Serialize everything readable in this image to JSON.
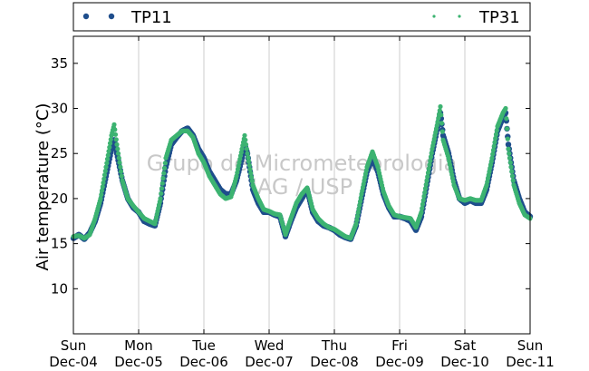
{
  "chart_data": {
    "type": "scatter",
    "ylabel": "Air temperature (°C)",
    "ylim": [
      5,
      38
    ],
    "yticks": [
      10,
      15,
      20,
      25,
      30,
      35
    ],
    "xlim": [
      "2016-12-04 00:00",
      "2016-12-11 00:00"
    ],
    "xticks": [
      {
        "date": "2016-12-04",
        "line1": "Sun",
        "line2": "Dec-04"
      },
      {
        "date": "2016-12-05",
        "line1": "Mon",
        "line2": "Dec-05"
      },
      {
        "date": "2016-12-06",
        "line1": "Tue",
        "line2": "Dec-06"
      },
      {
        "date": "2016-12-07",
        "line1": "Wed",
        "line2": "Dec-07"
      },
      {
        "date": "2016-12-08",
        "line1": "Thu",
        "line2": "Dec-08"
      },
      {
        "date": "2016-12-09",
        "line1": "Fri",
        "line2": "Dec-09"
      },
      {
        "date": "2016-12-10",
        "line1": "Sat",
        "line2": "Dec-10"
      },
      {
        "date": "2016-12-11",
        "line1": "Sun",
        "line2": "Dec-11"
      }
    ],
    "grid": "vertical",
    "legend_position": "top",
    "watermark": [
      "Grupo de Micrometeorologia",
      "IAG / USP"
    ],
    "series": [
      {
        "name": "TP11",
        "color": "#1f4e8c",
        "x": [
          "2016-12-04 00:00",
          "2016-12-04 02:00",
          "2016-12-04 04:00",
          "2016-12-04 06:00",
          "2016-12-04 08:00",
          "2016-12-04 10:00",
          "2016-12-04 12:00",
          "2016-12-04 14:00",
          "2016-12-04 15:00",
          "2016-12-04 16:00",
          "2016-12-04 17:00",
          "2016-12-04 18:00",
          "2016-12-04 20:00",
          "2016-12-04 22:00",
          "2016-12-05 00:00",
          "2016-12-05 02:00",
          "2016-12-05 04:00",
          "2016-12-05 06:00",
          "2016-12-05 08:00",
          "2016-12-05 10:00",
          "2016-12-05 12:00",
          "2016-12-05 14:00",
          "2016-12-05 16:00",
          "2016-12-05 18:00",
          "2016-12-05 20:00",
          "2016-12-05 22:00",
          "2016-12-06 00:00",
          "2016-12-06 02:00",
          "2016-12-06 04:00",
          "2016-12-06 06:00",
          "2016-12-06 08:00",
          "2016-12-06 10:00",
          "2016-12-06 12:00",
          "2016-12-06 14:00",
          "2016-12-06 15:00",
          "2016-12-06 16:00",
          "2016-12-06 18:00",
          "2016-12-06 20:00",
          "2016-12-06 22:00",
          "2016-12-07 00:00",
          "2016-12-07 02:00",
          "2016-12-07 04:00",
          "2016-12-07 06:00",
          "2016-12-07 08:00",
          "2016-12-07 10:00",
          "2016-12-07 12:00",
          "2016-12-07 14:00",
          "2016-12-07 16:00",
          "2016-12-07 18:00",
          "2016-12-07 20:00",
          "2016-12-07 22:00",
          "2016-12-08 00:00",
          "2016-12-08 02:00",
          "2016-12-08 04:00",
          "2016-12-08 06:00",
          "2016-12-08 08:00",
          "2016-12-08 10:00",
          "2016-12-08 12:00",
          "2016-12-08 14:00",
          "2016-12-08 16:00",
          "2016-12-08 18:00",
          "2016-12-08 20:00",
          "2016-12-08 22:00",
          "2016-12-09 00:00",
          "2016-12-09 02:00",
          "2016-12-09 04:00",
          "2016-12-09 06:00",
          "2016-12-09 08:00",
          "2016-12-09 10:00",
          "2016-12-09 12:00",
          "2016-12-09 14:00",
          "2016-12-09 15:00",
          "2016-12-09 16:00",
          "2016-12-09 18:00",
          "2016-12-09 20:00",
          "2016-12-09 22:00",
          "2016-12-10 00:00",
          "2016-12-10 02:00",
          "2016-12-10 04:00",
          "2016-12-10 06:00",
          "2016-12-10 08:00",
          "2016-12-10 10:00",
          "2016-12-10 12:00",
          "2016-12-10 14:00",
          "2016-12-10 15:00",
          "2016-12-10 16:00",
          "2016-12-10 18:00",
          "2016-12-10 20:00",
          "2016-12-10 22:00",
          "2016-12-11 00:00"
        ],
        "y": [
          15.6,
          16.0,
          15.5,
          16.2,
          17.5,
          19.5,
          22.5,
          25.5,
          26.5,
          25.0,
          23.5,
          22.0,
          20.0,
          19.0,
          18.5,
          17.5,
          17.2,
          17.0,
          19.5,
          23.5,
          26.0,
          26.8,
          27.5,
          27.8,
          27.0,
          25.5,
          24.5,
          23.0,
          22.0,
          21.0,
          20.5,
          20.5,
          22.0,
          24.5,
          26.0,
          25.0,
          21.0,
          19.5,
          18.5,
          18.5,
          18.2,
          18.0,
          15.8,
          17.5,
          19.0,
          20.0,
          21.0,
          18.5,
          17.5,
          17.0,
          16.8,
          16.5,
          16.0,
          15.7,
          15.5,
          17.0,
          20.0,
          23.0,
          24.5,
          23.0,
          20.5,
          19.0,
          18.0,
          18.0,
          17.8,
          17.5,
          16.5,
          18.0,
          21.5,
          25.0,
          28.0,
          29.5,
          27.0,
          25.0,
          22.0,
          20.0,
          19.5,
          19.8,
          19.5,
          19.5,
          21.0,
          24.0,
          27.5,
          29.0,
          29.5,
          26.0,
          22.0,
          20.0,
          18.5,
          18.0
        ]
      },
      {
        "name": "TP31",
        "color": "#3cb371",
        "x": [
          "2016-12-04 00:00",
          "2016-12-04 02:00",
          "2016-12-04 04:00",
          "2016-12-04 06:00",
          "2016-12-04 08:00",
          "2016-12-04 10:00",
          "2016-12-04 12:00",
          "2016-12-04 14:00",
          "2016-12-04 15:00",
          "2016-12-04 16:00",
          "2016-12-04 17:00",
          "2016-12-04 18:00",
          "2016-12-04 20:00",
          "2016-12-04 22:00",
          "2016-12-05 00:00",
          "2016-12-05 02:00",
          "2016-12-05 04:00",
          "2016-12-05 06:00",
          "2016-12-05 08:00",
          "2016-12-05 10:00",
          "2016-12-05 12:00",
          "2016-12-05 14:00",
          "2016-12-05 16:00",
          "2016-12-05 18:00",
          "2016-12-05 20:00",
          "2016-12-05 22:00",
          "2016-12-06 00:00",
          "2016-12-06 02:00",
          "2016-12-06 04:00",
          "2016-12-06 06:00",
          "2016-12-06 08:00",
          "2016-12-06 10:00",
          "2016-12-06 12:00",
          "2016-12-06 14:00",
          "2016-12-06 15:00",
          "2016-12-06 16:00",
          "2016-12-06 18:00",
          "2016-12-06 20:00",
          "2016-12-06 22:00",
          "2016-12-07 00:00",
          "2016-12-07 02:00",
          "2016-12-07 04:00",
          "2016-12-07 06:00",
          "2016-12-07 08:00",
          "2016-12-07 10:00",
          "2016-12-07 12:00",
          "2016-12-07 14:00",
          "2016-12-07 16:00",
          "2016-12-07 18:00",
          "2016-12-07 20:00",
          "2016-12-07 22:00",
          "2016-12-08 00:00",
          "2016-12-08 02:00",
          "2016-12-08 04:00",
          "2016-12-08 06:00",
          "2016-12-08 08:00",
          "2016-12-08 10:00",
          "2016-12-08 12:00",
          "2016-12-08 14:00",
          "2016-12-08 16:00",
          "2016-12-08 18:00",
          "2016-12-08 20:00",
          "2016-12-08 22:00",
          "2016-12-09 00:00",
          "2016-12-09 02:00",
          "2016-12-09 04:00",
          "2016-12-09 06:00",
          "2016-12-09 08:00",
          "2016-12-09 10:00",
          "2016-12-09 12:00",
          "2016-12-09 14:00",
          "2016-12-09 15:00",
          "2016-12-09 16:00",
          "2016-12-09 18:00",
          "2016-12-09 20:00",
          "2016-12-09 22:00",
          "2016-12-10 00:00",
          "2016-12-10 02:00",
          "2016-12-10 04:00",
          "2016-12-10 06:00",
          "2016-12-10 08:00",
          "2016-12-10 10:00",
          "2016-12-10 12:00",
          "2016-12-10 14:00",
          "2016-12-10 15:00",
          "2016-12-10 16:00",
          "2016-12-10 18:00",
          "2016-12-10 20:00",
          "2016-12-10 22:00",
          "2016-12-11 00:00"
        ],
        "y": [
          15.8,
          15.9,
          15.6,
          16.0,
          17.8,
          20.0,
          23.5,
          27.0,
          28.2,
          26.0,
          24.0,
          22.0,
          20.0,
          19.2,
          18.5,
          17.8,
          17.5,
          17.2,
          20.0,
          24.5,
          26.5,
          27.0,
          27.5,
          27.5,
          26.8,
          25.0,
          24.0,
          22.5,
          21.5,
          20.5,
          20.0,
          20.2,
          22.5,
          25.5,
          27.0,
          25.0,
          21.5,
          20.0,
          18.8,
          18.6,
          18.3,
          18.2,
          16.0,
          17.8,
          19.5,
          20.5,
          21.2,
          18.8,
          17.8,
          17.2,
          16.8,
          16.6,
          16.2,
          15.8,
          15.6,
          17.2,
          20.5,
          23.5,
          25.2,
          23.5,
          20.8,
          19.2,
          18.2,
          18.0,
          17.9,
          17.8,
          16.8,
          18.5,
          22.0,
          25.5,
          28.5,
          30.2,
          26.5,
          24.5,
          21.5,
          20.0,
          19.8,
          20.0,
          19.8,
          19.8,
          21.5,
          24.5,
          28.0,
          29.5,
          30.0,
          25.5,
          21.5,
          19.5,
          18.2,
          17.8
        ]
      }
    ]
  }
}
